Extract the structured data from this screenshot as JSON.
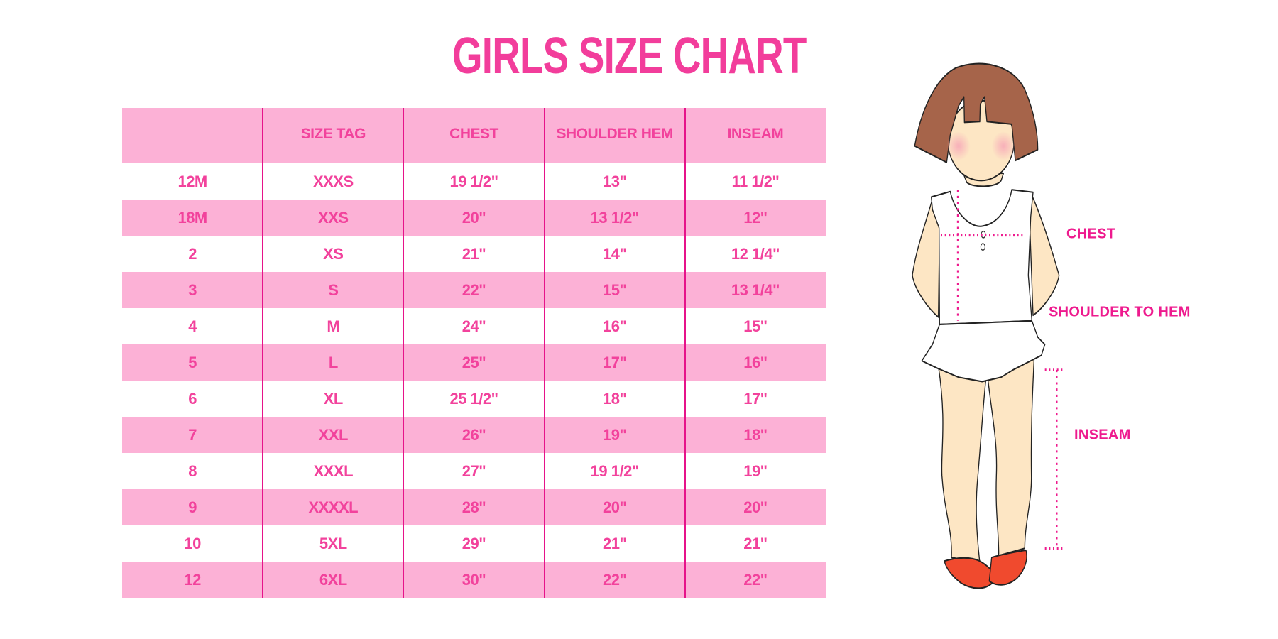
{
  "title": "GIRLS SIZE CHART",
  "colors": {
    "accent": "#f23d9b",
    "row_pink": "#fcb1d6",
    "divider": "#e6138a"
  },
  "table": {
    "headers": [
      "",
      "SIZE TAG",
      "CHEST",
      "SHOULDER HEM",
      "INSEAM"
    ],
    "rows": [
      [
        "12M",
        "XXXS",
        "19 1/2\"",
        "13\"",
        "11 1/2\""
      ],
      [
        "18M",
        "XXS",
        "20\"",
        "13 1/2\"",
        "12\""
      ],
      [
        "2",
        "XS",
        "21\"",
        "14\"",
        "12 1/4\""
      ],
      [
        "3",
        "S",
        "22\"",
        "15\"",
        "13 1/4\""
      ],
      [
        "4",
        "M",
        "24\"",
        "16\"",
        "15\""
      ],
      [
        "5",
        "L",
        "25\"",
        "17\"",
        "16\""
      ],
      [
        "6",
        "XL",
        "25 1/2\"",
        "18\"",
        "17\""
      ],
      [
        "7",
        "XXL",
        "26\"",
        "19\"",
        "18\""
      ],
      [
        "8",
        "XXXL",
        "27\"",
        "19 1/2\"",
        "19\""
      ],
      [
        "9",
        "XXXXL",
        "28\"",
        "20\"",
        "20\""
      ],
      [
        "10",
        "5XL",
        "29\"",
        "21\"",
        "21\""
      ],
      [
        "12",
        "6XL",
        "30\"",
        "22\"",
        "22\""
      ]
    ]
  },
  "figure": {
    "labels": {
      "chest": "CHEST",
      "shoulder_to_hem": "SHOULDER TO HEM",
      "inseam": "INSEAM"
    }
  }
}
